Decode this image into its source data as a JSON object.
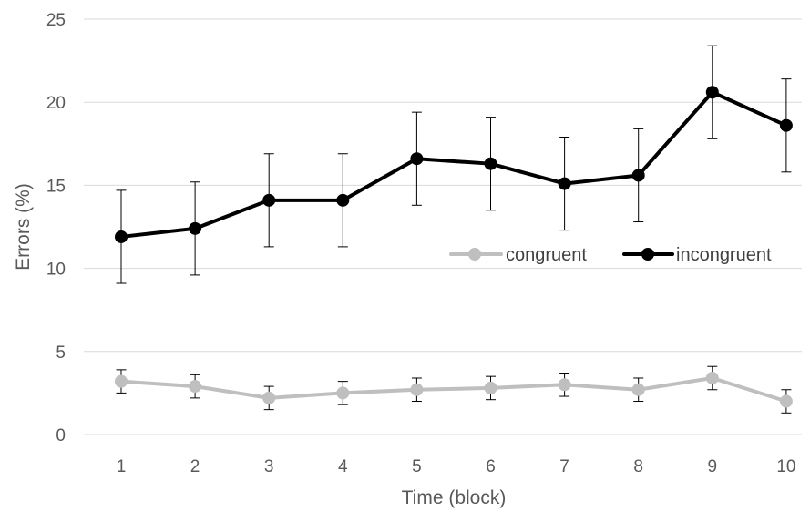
{
  "chart_data": {
    "type": "line",
    "title": "",
    "xlabel": "Time (block)",
    "ylabel": "Errors (%)",
    "categories": [
      "1",
      "2",
      "3",
      "4",
      "5",
      "6",
      "7",
      "8",
      "9",
      "10"
    ],
    "ylim": [
      0,
      25
    ],
    "yticks": [
      "0",
      "5",
      "10",
      "15",
      "20",
      "25"
    ],
    "grid": "horizontal",
    "legend_position": "right, inside plot",
    "series": [
      {
        "name": "congruent",
        "color": "#bfbfbf",
        "values": [
          3.2,
          2.9,
          2.2,
          2.5,
          2.7,
          2.8,
          3.0,
          2.7,
          3.4,
          2.0
        ],
        "error_low": [
          2.5,
          2.2,
          1.5,
          1.8,
          2.0,
          2.1,
          2.3,
          2.0,
          2.7,
          1.3
        ],
        "error_high": [
          3.9,
          3.6,
          2.9,
          3.2,
          3.4,
          3.5,
          3.7,
          3.4,
          4.1,
          2.7
        ]
      },
      {
        "name": "incongruent",
        "color": "#000000",
        "values": [
          11.9,
          12.4,
          14.1,
          14.1,
          16.6,
          16.3,
          15.1,
          15.6,
          20.6,
          18.6
        ],
        "error_low": [
          9.1,
          9.6,
          11.3,
          11.3,
          13.8,
          13.5,
          12.3,
          12.8,
          17.8,
          15.8
        ],
        "error_high": [
          14.7,
          15.2,
          16.9,
          16.9,
          19.4,
          19.1,
          17.9,
          18.4,
          23.4,
          21.4
        ]
      }
    ]
  }
}
